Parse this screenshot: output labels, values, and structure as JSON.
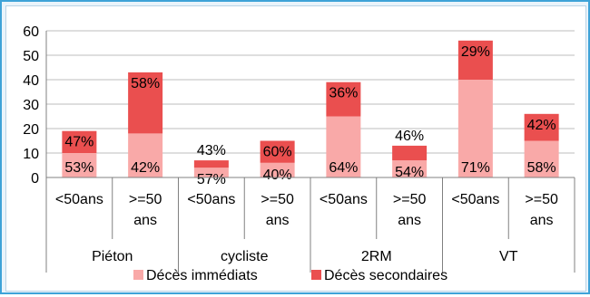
{
  "colors": {
    "immediate": "#f9a9a8",
    "secondary": "#ea4f4f",
    "frame": "#3ea3d8"
  },
  "chart_data": {
    "type": "bar",
    "stacked": true,
    "ylim": [
      0,
      60
    ],
    "yticks": [
      0,
      10,
      20,
      30,
      40,
      50,
      60
    ],
    "grid": true,
    "legend_position": "bottom",
    "groups": [
      "Piéton",
      "cycliste",
      "2RM",
      "VT"
    ],
    "categories": [
      "<50ans",
      ">=50 ans",
      "<50ans",
      ">=50 ans",
      "<50ans",
      ">=50 ans",
      "<50ans",
      ">=50 ans"
    ],
    "series": [
      {
        "name": "Décès immédiats",
        "values": [
          10,
          18,
          4,
          6,
          25,
          7,
          40,
          15
        ],
        "labels": [
          "53%",
          "42%",
          "57%",
          "40%",
          "64%",
          "54%",
          "71%",
          "58%"
        ]
      },
      {
        "name": "Décès secondaires",
        "values": [
          9,
          25,
          3,
          9,
          14,
          6,
          16,
          11
        ],
        "labels": [
          "47%",
          "58%",
          "43%",
          "60%",
          "36%",
          "46%",
          "29%",
          "42%"
        ]
      }
    ]
  }
}
